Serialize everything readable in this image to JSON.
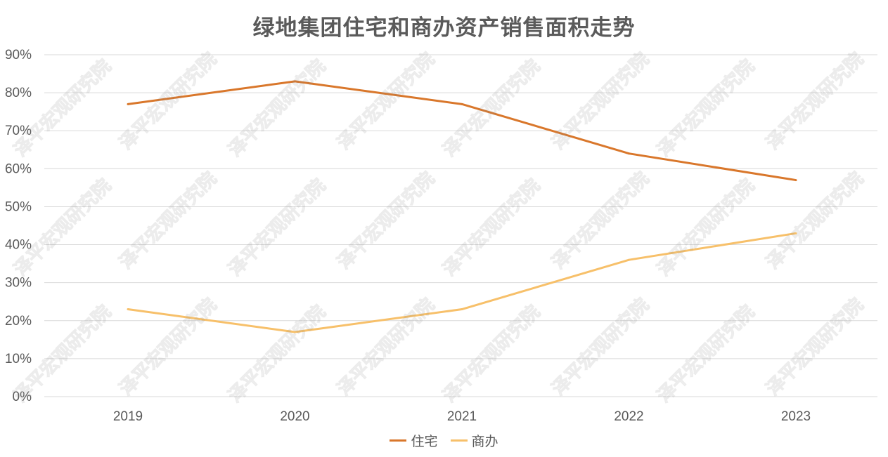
{
  "title": "绿地集团住宅和商办资产销售面积走势",
  "colors": {
    "residential": "#d9772b",
    "commercial": "#f7c06a",
    "grid": "#d9d9d9",
    "text": "#595959"
  },
  "chart_data": {
    "type": "line",
    "title": "绿地集团住宅和商办资产销售面积走势",
    "categories": [
      "2019",
      "2020",
      "2021",
      "2022",
      "2023"
    ],
    "series": [
      {
        "name": "住宅",
        "values": [
          77,
          83,
          77,
          64,
          57
        ]
      },
      {
        "name": "商办",
        "values": [
          23,
          17,
          23,
          36,
          43
        ]
      }
    ],
    "ylim": [
      0,
      90
    ],
    "y_ticks": [
      "0%",
      "10%",
      "20%",
      "30%",
      "40%",
      "50%",
      "60%",
      "70%",
      "80%",
      "90%"
    ],
    "grid": true,
    "legend": "bottom"
  },
  "watermark": "泽平宏观研究院"
}
